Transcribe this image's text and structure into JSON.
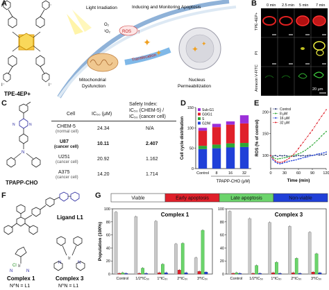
{
  "panel_labels": [
    "A",
    "B",
    "C",
    "D",
    "E",
    "F",
    "G"
  ],
  "panelA": {
    "compound_label": "TPE-4EP+",
    "iodide": "I⁻",
    "light": "Light Irradiation",
    "o2": "O₂",
    "singlet_o2": "¹O₂",
    "ros": "ROS",
    "inducing": "Inducing and Monitoring Apoptosis",
    "translocation": "Translocation",
    "mito": "Mitochondrial",
    "dysfunction": "Dysfunction",
    "nucleus": "Nucleus",
    "permeabilization": "Permeabilization"
  },
  "panelB": {
    "times": [
      "0 min",
      "2.5 min",
      "5 min",
      "7 min"
    ],
    "rows": [
      "TPE-4EP+",
      "PI",
      "Annexin V-FITC"
    ],
    "scalebar": "20 μm"
  },
  "panelC": {
    "compound": "TPAPP-CHO",
    "col_cell": "Cell",
    "col_ic50": "IC₅₀ (μM)",
    "col_si1": "Safety Index:",
    "col_si2": "IC₅₀ (CHEM-5) /",
    "col_si3": "IC₅₀ (cancer cell)",
    "rows": [
      {
        "cell": "CHEM-5",
        "sub": "(normal cell)",
        "ic50": "24.34",
        "si": "N/A",
        "bold": false
      },
      {
        "cell": "U87",
        "sub": "(cancer cell)",
        "ic50": "10.11",
        "si": "2.407",
        "bold": true
      },
      {
        "cell": "U251",
        "sub": "(cancer cell)",
        "ic50": "20.92",
        "si": "1.162",
        "bold": false
      },
      {
        "cell": "A375",
        "sub": "(cancer cell)",
        "ic50": "14.20",
        "si": "1.714",
        "bold": false
      }
    ]
  },
  "panelF": {
    "ligand": "Ligand L1",
    "complex1": "Complex 1",
    "complex1_sub": "N^N = L1",
    "complex3": "Complex 3",
    "complex3_sub": "N^N = L1"
  },
  "colors": {
    "sub_g1": "#9b30d9",
    "g0_g1": "#e0202a",
    "s": "#2ea836",
    "g2_m": "#2040d8",
    "control": "#1a2a6c",
    "c8": "#2ea836",
    "c16": "#2040d8",
    "c32": "#e0202a",
    "viable": "#c8c8c8",
    "early": "#e0202a",
    "late": "#6cd46c",
    "nonviable": "#2040d8"
  },
  "chart_data": [
    {
      "type": "bar",
      "panel": "D",
      "stacked": true,
      "categories": [
        "Control",
        "8",
        "16",
        "32"
      ],
      "xlabel": "TPAPP-CHO (μM)",
      "ylabel": "Cell cycle distribution",
      "ylim": [
        0,
        150
      ],
      "yticks": [
        0,
        50,
        100,
        150
      ],
      "legend": "top-left",
      "series": [
        {
          "name": "G2/M",
          "values": [
            48,
            50,
            52,
            53
          ]
        },
        {
          "name": "S",
          "values": [
            8,
            9,
            10,
            10
          ]
        },
        {
          "name": "G0/G1",
          "values": [
            37,
            43,
            46,
            48
          ]
        },
        {
          "name": "Sub-G1",
          "values": [
            7,
            8,
            8,
            20
          ]
        }
      ]
    },
    {
      "type": "line",
      "panel": "E",
      "xlabel": "Time (min)",
      "ylabel": "ROS (% of control)",
      "xlim": [
        0,
        120
      ],
      "ylim": [
        70,
        210
      ],
      "xticks": [
        0,
        30,
        60,
        90,
        120
      ],
      "yticks": [
        100,
        150,
        200
      ],
      "legend": "top-left",
      "x": [
        0,
        5,
        10,
        15,
        20,
        25,
        30,
        35,
        40,
        45,
        50,
        55,
        60,
        65,
        70,
        75,
        80,
        85,
        90,
        95,
        100,
        105,
        110,
        115,
        120
      ],
      "series": [
        {
          "name": "Control",
          "values": [
            100,
            99,
            100,
            98,
            100,
            99,
            100,
            99,
            98,
            99,
            98,
            99,
            100,
            99,
            100,
            99,
            100,
            101,
            100,
            101,
            102,
            101,
            102,
            101,
            103
          ]
        },
        {
          "name": "8 μM",
          "values": [
            100,
            96,
            93,
            92,
            93,
            94,
            95,
            96,
            98,
            99,
            100,
            102,
            104,
            106,
            109,
            112,
            116,
            120,
            124,
            129,
            134,
            139,
            145,
            150,
            155
          ]
        },
        {
          "name": "16 μM",
          "values": [
            100,
            90,
            85,
            82,
            81,
            82,
            84,
            85,
            87,
            88,
            89,
            90,
            92,
            93,
            95,
            96,
            97,
            99,
            100,
            101,
            103,
            104,
            105,
            106,
            108
          ]
        },
        {
          "name": "32 μM",
          "values": [
            100,
            93,
            88,
            85,
            84,
            85,
            87,
            90,
            94,
            98,
            103,
            109,
            116,
            123,
            130,
            137,
            144,
            151,
            158,
            166,
            174,
            182,
            190,
            197,
            205
          ]
        }
      ]
    },
    {
      "type": "bar",
      "panel": "G",
      "title": "Complex 1",
      "categories": [
        "Control",
        "1/2*IC₅₀",
        "1*IC₅₀",
        "2*IC₅₀",
        "3*IC₅₀"
      ],
      "ylabel": "Population (100%)",
      "ylim": [
        0,
        100
      ],
      "yticks": [
        0,
        20,
        40,
        60,
        80,
        100
      ],
      "legend": "top",
      "series": [
        {
          "name": "Viable",
          "values": [
            95,
            88,
            81,
            46,
            25
          ]
        },
        {
          "name": "Early apoptosis",
          "values": [
            1,
            1,
            2,
            6,
            4
          ]
        },
        {
          "name": "Late apoptosis",
          "values": [
            2,
            9,
            15,
            47,
            67
          ]
        },
        {
          "name": "Non-viable",
          "values": [
            1,
            1,
            2,
            2,
            3
          ]
        }
      ]
    },
    {
      "type": "bar",
      "panel": "G",
      "title": "Complex 3",
      "categories": [
        "Control",
        "1/2*IC₅₀",
        "1*IC₅₀",
        "2*IC₅₀",
        "3*IC₅₀"
      ],
      "ylabel": "Population (100%)",
      "ylim": [
        0,
        100
      ],
      "yticks": [
        0,
        20,
        40,
        60,
        80,
        100
      ],
      "legend": "top",
      "series": [
        {
          "name": "Viable",
          "values": [
            96,
            85,
            79,
            73,
            64
          ]
        },
        {
          "name": "Early apoptosis",
          "values": [
            1,
            1,
            2,
            2,
            3
          ]
        },
        {
          "name": "Late apoptosis",
          "values": [
            2,
            13,
            18,
            24,
            31
          ]
        },
        {
          "name": "Non-viable",
          "values": [
            1,
            1,
            1,
            1,
            2
          ]
        }
      ]
    }
  ]
}
